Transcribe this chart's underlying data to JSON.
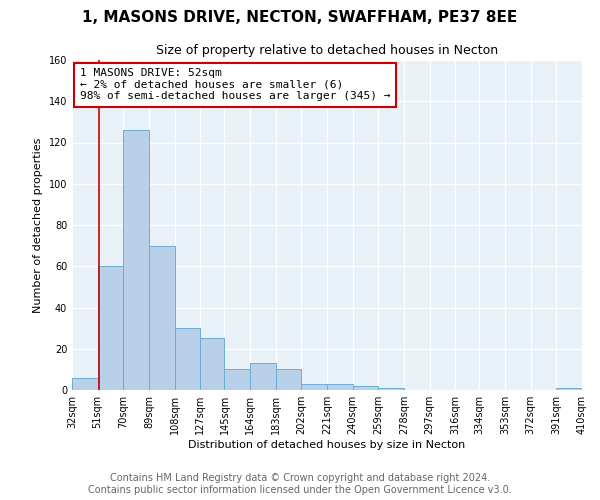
{
  "title": "1, MASONS DRIVE, NECTON, SWAFFHAM, PE37 8EE",
  "subtitle": "Size of property relative to detached houses in Necton",
  "xlabel": "Distribution of detached houses by size in Necton",
  "ylabel": "Number of detached properties",
  "bin_edges": [
    32,
    51,
    70,
    89,
    108,
    127,
    145,
    164,
    183,
    202,
    221,
    240,
    259,
    278,
    297,
    316,
    334,
    353,
    372,
    391,
    410
  ],
  "bin_labels": [
    "32sqm",
    "51sqm",
    "70sqm",
    "89sqm",
    "108sqm",
    "127sqm",
    "145sqm",
    "164sqm",
    "183sqm",
    "202sqm",
    "221sqm",
    "240sqm",
    "259sqm",
    "278sqm",
    "297sqm",
    "316sqm",
    "334sqm",
    "353sqm",
    "372sqm",
    "391sqm",
    "410sqm"
  ],
  "counts": [
    6,
    60,
    126,
    70,
    30,
    25,
    10,
    13,
    10,
    3,
    3,
    2,
    1,
    0,
    0,
    0,
    0,
    0,
    0,
    1
  ],
  "bar_color": "#b8d0e8",
  "bar_edge_color": "#6aaed6",
  "property_size": 52,
  "vline_color": "#cc0000",
  "ylim": [
    0,
    160
  ],
  "yticks": [
    0,
    20,
    40,
    60,
    80,
    100,
    120,
    140,
    160
  ],
  "annotation_line1": "1 MASONS DRIVE: 52sqm",
  "annotation_line2": "← 2% of detached houses are smaller (6)",
  "annotation_line3": "98% of semi-detached houses are larger (345) →",
  "annotation_box_color": "#ffffff",
  "annotation_border_color": "#cc0000",
  "footer_line1": "Contains HM Land Registry data © Crown copyright and database right 2024.",
  "footer_line2": "Contains public sector information licensed under the Open Government Licence v3.0.",
  "bg_color": "#ffffff",
  "plot_bg_color": "#e8f0f8",
  "grid_color": "#ffffff",
  "title_fontsize": 11,
  "subtitle_fontsize": 9,
  "axis_label_fontsize": 8,
  "tick_fontsize": 7,
  "annotation_fontsize": 8,
  "footer_fontsize": 7
}
